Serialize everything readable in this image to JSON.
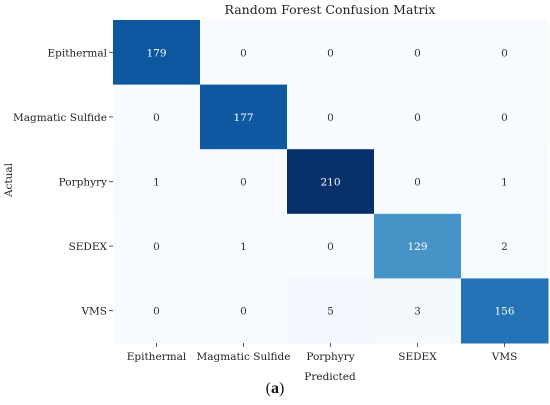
{
  "chart_data": {
    "type": "heatmap",
    "title": "Random Forest Confusion Matrix",
    "xlabel": "Predicted",
    "ylabel": "Actual",
    "x_categories": [
      "Epithermal",
      "Magmatic Sulfide",
      "Porphyry",
      "SEDEX",
      "VMS"
    ],
    "y_categories": [
      "Epithermal",
      "Magmatic Sulfide",
      "Porphyry",
      "SEDEX",
      "VMS"
    ],
    "values": [
      [
        179,
        0,
        0,
        0,
        0
      ],
      [
        0,
        177,
        0,
        0,
        0
      ],
      [
        1,
        0,
        210,
        0,
        1
      ],
      [
        0,
        1,
        0,
        129,
        2
      ],
      [
        0,
        0,
        5,
        3,
        156
      ]
    ],
    "colormap": "Blues",
    "vmax": 210
  },
  "caption": {
    "open": "(",
    "label": "a",
    "close": ")"
  }
}
